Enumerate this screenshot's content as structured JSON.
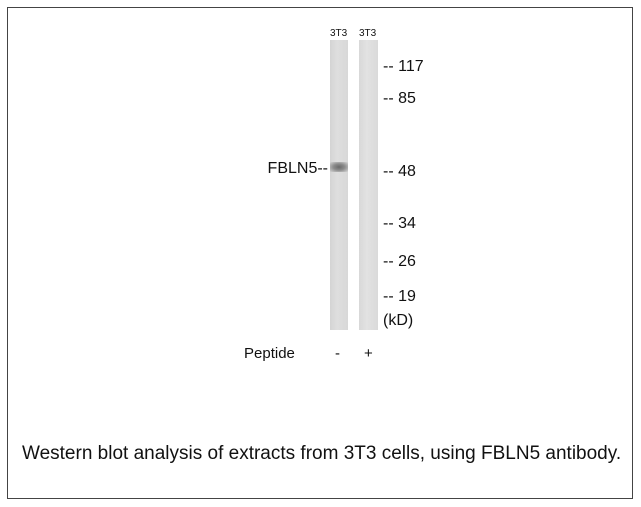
{
  "blot": {
    "lanes": [
      "3T3",
      "3T3"
    ],
    "band_label": "FBLN5--",
    "markers": [
      "-- 117",
      "-- 85",
      "-- 48",
      "-- 34",
      "-- 26",
      "-- 19",
      "(kD)"
    ],
    "peptide": {
      "label": "Peptide",
      "lanes": [
        "-",
        "+"
      ]
    }
  },
  "caption": "Western blot analysis of extracts from 3T3 cells, using FBLN5 antibody."
}
